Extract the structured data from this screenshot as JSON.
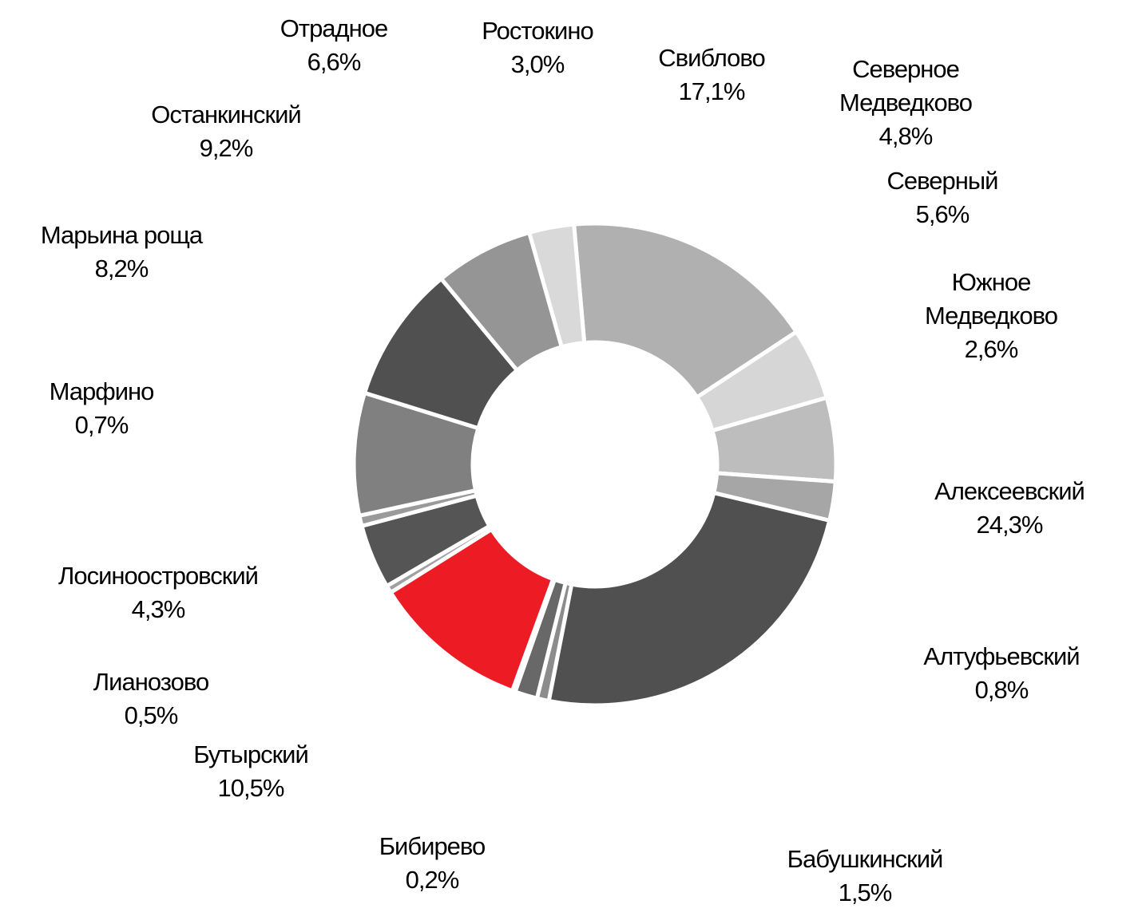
{
  "chart_data": {
    "type": "pie",
    "hole": true,
    "title": "",
    "slices": [
      {
        "label": "Свиблово",
        "value_label": "17,1%",
        "value": 17.1,
        "color": "#b0b0b0"
      },
      {
        "label": "Северное\nМедведково",
        "value_label": "4,8%",
        "value": 4.8,
        "color": "#d6d6d6"
      },
      {
        "label": "Северный",
        "value_label": "5,6%",
        "value": 5.6,
        "color": "#bdbdbd"
      },
      {
        "label": "Южное Медведково",
        "value_label": "2,6%",
        "value": 2.6,
        "color": "#a6a6a6"
      },
      {
        "label": "Алексеевский",
        "value_label": "24,3%",
        "value": 24.3,
        "color": "#505050"
      },
      {
        "label": "Алтуфьевский",
        "value_label": "0,8%",
        "value": 0.8,
        "color": "#8c8c8c"
      },
      {
        "label": "Бабушкинский",
        "value_label": "1,5%",
        "value": 1.5,
        "color": "#686868"
      },
      {
        "label": "Бибирево",
        "value_label": "0,2%",
        "value": 0.2,
        "color": "#404040"
      },
      {
        "label": "Бутырский",
        "value_label": "10,5%",
        "value": 10.5,
        "color": "#ed1c24"
      },
      {
        "label": "Лианозово",
        "value_label": "0,5%",
        "value": 0.5,
        "color": "#a0a0a0"
      },
      {
        "label": "Лосиноостровский",
        "value_label": "4,3%",
        "value": 4.3,
        "color": "#555555"
      },
      {
        "label": "Марфино",
        "value_label": "0,7%",
        "value": 0.7,
        "color": "#9a9a9a"
      },
      {
        "label": "Марьина роща",
        "value_label": "8,2%",
        "value": 8.2,
        "color": "#808080"
      },
      {
        "label": "Останкинский",
        "value_label": "9,2%",
        "value": 9.2,
        "color": "#505050"
      },
      {
        "label": "Отрадное",
        "value_label": "6,6%",
        "value": 6.6,
        "color": "#959595"
      },
      {
        "label": "Ростокино",
        "value_label": "3,0%",
        "value": 3.0,
        "color": "#d9d9d9"
      }
    ]
  }
}
